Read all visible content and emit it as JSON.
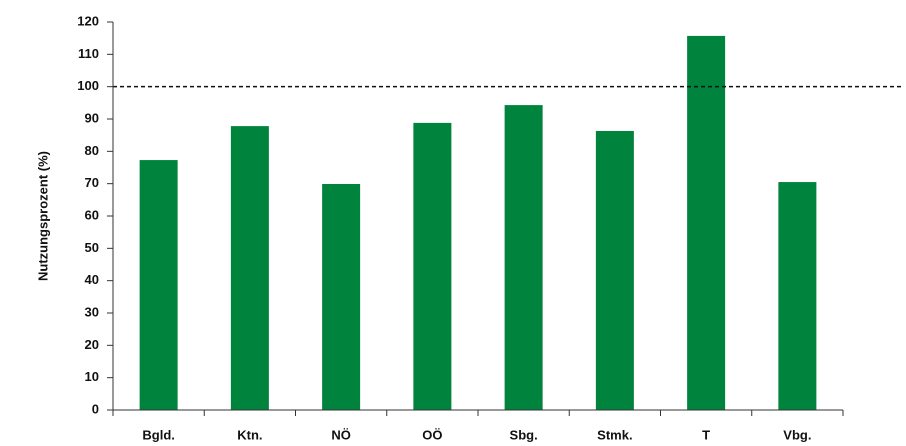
{
  "chart_data": {
    "type": "bar",
    "y_label": "Nutzungsprozent (%)",
    "categories": [
      "Bgld.",
      "Ktn.",
      "NÖ",
      "OÖ",
      "Sbg.",
      "Stmk.",
      "T",
      "Vbg."
    ],
    "values": [
      77.3,
      87.8,
      69.9,
      88.8,
      94.3,
      86.3,
      115.7,
      70.5
    ],
    "color": "#00843d",
    "ylim": [
      0,
      120
    ],
    "yticks": [
      0,
      10,
      20,
      30,
      40,
      50,
      60,
      70,
      80,
      90,
      100,
      110,
      120
    ],
    "reference_line": 100,
    "grid": false
  }
}
